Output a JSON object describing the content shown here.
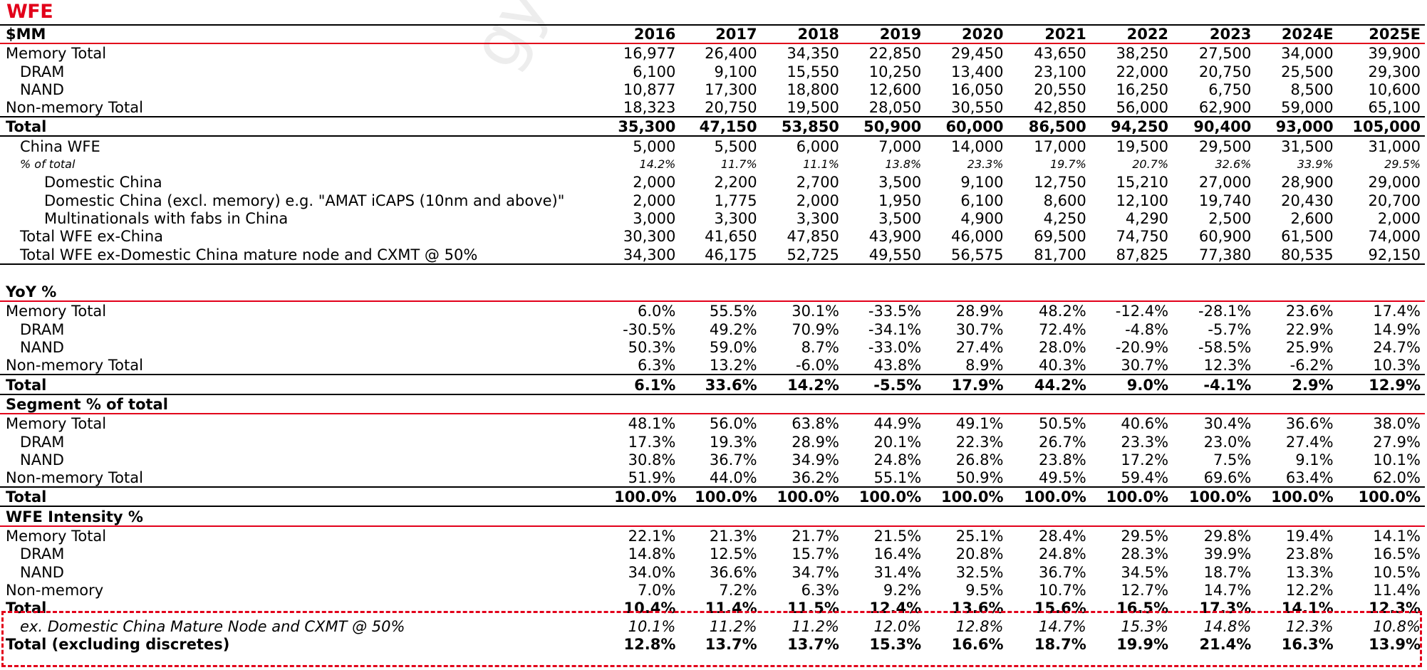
{
  "title": "WFE",
  "watermark": "gyu@ bo",
  "header": {
    "label": "$MM",
    "years": [
      "2016",
      "2017",
      "2018",
      "2019",
      "2020",
      "2021",
      "2022",
      "2023",
      "2024E",
      "2025E"
    ]
  },
  "wfe_rows": [
    {
      "label": "Memory Total",
      "values": [
        "16,977",
        "26,400",
        "34,350",
        "22,850",
        "29,450",
        "43,650",
        "38,250",
        "27,500",
        "34,000",
        "39,900"
      ]
    },
    {
      "label": "DRAM",
      "values": [
        "6,100",
        "9,100",
        "15,550",
        "10,250",
        "13,400",
        "23,100",
        "22,000",
        "20,750",
        "25,500",
        "29,300"
      ]
    },
    {
      "label": "NAND",
      "values": [
        "10,877",
        "17,300",
        "18,800",
        "12,600",
        "16,050",
        "20,550",
        "16,250",
        "6,750",
        "8,500",
        "10,600"
      ]
    },
    {
      "label": "Non-memory Total",
      "values": [
        "18,323",
        "20,750",
        "19,500",
        "28,050",
        "30,550",
        "42,850",
        "56,000",
        "62,900",
        "59,000",
        "65,100"
      ]
    },
    {
      "label": "Total",
      "values": [
        "35,300",
        "47,150",
        "53,850",
        "50,900",
        "60,000",
        "86,500",
        "94,250",
        "90,400",
        "93,000",
        "105,000"
      ]
    },
    {
      "label": "China WFE",
      "values": [
        "5,000",
        "5,500",
        "6,000",
        "7,000",
        "14,000",
        "17,000",
        "19,500",
        "29,500",
        "31,500",
        "31,000"
      ]
    },
    {
      "label": "% of total",
      "values": [
        "14.2%",
        "11.7%",
        "11.1%",
        "13.8%",
        "23.3%",
        "19.7%",
        "20.7%",
        "32.6%",
        "33.9%",
        "29.5%"
      ]
    },
    {
      "label": "Domestic China",
      "values": [
        "2,000",
        "2,200",
        "2,700",
        "3,500",
        "9,100",
        "12,750",
        "15,210",
        "27,000",
        "28,900",
        "29,000"
      ]
    },
    {
      "label": "Domestic China (excl. memory) e.g. \"AMAT iCAPS (10nm and above)\"",
      "values": [
        "2,000",
        "1,775",
        "2,000",
        "1,950",
        "6,100",
        "8,600",
        "12,100",
        "19,740",
        "20,430",
        "20,700"
      ]
    },
    {
      "label": "Multinationals with fabs in China",
      "values": [
        "3,000",
        "3,300",
        "3,300",
        "3,500",
        "4,900",
        "4,250",
        "4,290",
        "2,500",
        "2,600",
        "2,000"
      ]
    },
    {
      "label": "Total WFE ex-China",
      "values": [
        "30,300",
        "41,650",
        "47,850",
        "43,900",
        "46,000",
        "69,500",
        "74,750",
        "60,900",
        "61,500",
        "74,000"
      ]
    },
    {
      "label": "Total WFE ex-Domestic China mature node and CXMT @ 50%",
      "values": [
        "34,300",
        "46,175",
        "52,725",
        "49,550",
        "56,575",
        "81,700",
        "87,825",
        "77,380",
        "80,535",
        "92,150"
      ]
    }
  ],
  "yoy": {
    "title": "YoY %",
    "rows": [
      {
        "label": "Memory Total",
        "values": [
          "6.0%",
          "55.5%",
          "30.1%",
          "-33.5%",
          "28.9%",
          "48.2%",
          "-12.4%",
          "-28.1%",
          "23.6%",
          "17.4%"
        ]
      },
      {
        "label": "DRAM",
        "values": [
          "-30.5%",
          "49.2%",
          "70.9%",
          "-34.1%",
          "30.7%",
          "72.4%",
          "-4.8%",
          "-5.7%",
          "22.9%",
          "14.9%"
        ]
      },
      {
        "label": "NAND",
        "values": [
          "50.3%",
          "59.0%",
          "8.7%",
          "-33.0%",
          "27.4%",
          "28.0%",
          "-20.9%",
          "-58.5%",
          "25.9%",
          "24.7%"
        ]
      },
      {
        "label": "Non-memory Total",
        "values": [
          "6.3%",
          "13.2%",
          "-6.0%",
          "43.8%",
          "8.9%",
          "40.3%",
          "30.7%",
          "12.3%",
          "-6.2%",
          "10.3%"
        ]
      },
      {
        "label": "Total",
        "values": [
          "6.1%",
          "33.6%",
          "14.2%",
          "-5.5%",
          "17.9%",
          "44.2%",
          "9.0%",
          "-4.1%",
          "2.9%",
          "12.9%"
        ]
      }
    ]
  },
  "segment": {
    "title": "Segment % of total",
    "rows": [
      {
        "label": "Memory Total",
        "values": [
          "48.1%",
          "56.0%",
          "63.8%",
          "44.9%",
          "49.1%",
          "50.5%",
          "40.6%",
          "30.4%",
          "36.6%",
          "38.0%"
        ]
      },
      {
        "label": "DRAM",
        "values": [
          "17.3%",
          "19.3%",
          "28.9%",
          "20.1%",
          "22.3%",
          "26.7%",
          "23.3%",
          "23.0%",
          "27.4%",
          "27.9%"
        ]
      },
      {
        "label": "NAND",
        "values": [
          "30.8%",
          "36.7%",
          "34.9%",
          "24.8%",
          "26.8%",
          "23.8%",
          "17.2%",
          "7.5%",
          "9.1%",
          "10.1%"
        ]
      },
      {
        "label": "Non-memory Total",
        "values": [
          "51.9%",
          "44.0%",
          "36.2%",
          "55.1%",
          "50.9%",
          "49.5%",
          "59.4%",
          "69.6%",
          "63.4%",
          "62.0%"
        ]
      },
      {
        "label": "Total",
        "values": [
          "100.0%",
          "100.0%",
          "100.0%",
          "100.0%",
          "100.0%",
          "100.0%",
          "100.0%",
          "100.0%",
          "100.0%",
          "100.0%"
        ]
      }
    ]
  },
  "intensity": {
    "title": "WFE Intensity %",
    "rows": [
      {
        "label": "Memory Total",
        "values": [
          "22.1%",
          "21.3%",
          "21.7%",
          "21.5%",
          "25.1%",
          "28.4%",
          "29.5%",
          "29.8%",
          "19.4%",
          "14.1%"
        ]
      },
      {
        "label": "DRAM",
        "values": [
          "14.8%",
          "12.5%",
          "15.7%",
          "16.4%",
          "20.8%",
          "24.8%",
          "28.3%",
          "39.9%",
          "23.8%",
          "16.5%"
        ]
      },
      {
        "label": "NAND",
        "values": [
          "34.0%",
          "36.6%",
          "34.7%",
          "31.4%",
          "32.5%",
          "36.7%",
          "34.5%",
          "18.7%",
          "13.3%",
          "10.5%"
        ]
      },
      {
        "label": "Non-memory",
        "values": [
          "7.0%",
          "7.2%",
          "6.3%",
          "9.2%",
          "9.5%",
          "10.7%",
          "12.7%",
          "14.7%",
          "12.2%",
          "11.4%"
        ]
      },
      {
        "label": "Total",
        "values": [
          "10.4%",
          "11.4%",
          "11.5%",
          "12.4%",
          "13.6%",
          "15.6%",
          "16.5%",
          "17.3%",
          "14.1%",
          "12.3%"
        ]
      },
      {
        "label": "ex. Domestic China Mature Node and CXMT @ 50%",
        "values": [
          "10.1%",
          "11.2%",
          "11.2%",
          "12.0%",
          "12.8%",
          "14.7%",
          "15.3%",
          "14.8%",
          "12.3%",
          "10.8%"
        ]
      },
      {
        "label": "Total (excluding discretes)",
        "values": [
          "12.8%",
          "13.7%",
          "13.7%",
          "15.3%",
          "16.6%",
          "18.7%",
          "19.9%",
          "21.4%",
          "16.3%",
          "13.9%"
        ]
      }
    ]
  }
}
